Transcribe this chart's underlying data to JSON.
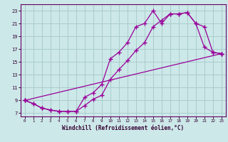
{
  "title": "",
  "xlabel": "Windchill (Refroidissement éolien,°C)",
  "bg_color": "#cce8e8",
  "grid_color": "#aacccc",
  "line_color": "#990099",
  "spine_color": "#660066",
  "tick_color": "#330033",
  "xlim": [
    -0.5,
    23.5
  ],
  "ylim": [
    6.5,
    24
  ],
  "xticks": [
    0,
    1,
    2,
    3,
    4,
    5,
    6,
    7,
    8,
    9,
    10,
    11,
    12,
    13,
    14,
    15,
    16,
    17,
    18,
    19,
    20,
    21,
    22,
    23
  ],
  "yticks": [
    7,
    9,
    11,
    13,
    15,
    17,
    19,
    21,
    23
  ],
  "line1_x": [
    0,
    1,
    2,
    3,
    4,
    5,
    6,
    7,
    8,
    9,
    10,
    11,
    12,
    13,
    14,
    15,
    16,
    17,
    18,
    19,
    20,
    21,
    22,
    23
  ],
  "line1_y": [
    9,
    8.5,
    7.8,
    7.5,
    7.3,
    7.3,
    7.3,
    9.5,
    10.2,
    11.5,
    15.5,
    16.5,
    18.0,
    20.5,
    21.0,
    23.0,
    21.0,
    22.5,
    22.5,
    22.7,
    21.0,
    17.3,
    16.5,
    16.3
  ],
  "line2_x": [
    0,
    1,
    2,
    3,
    4,
    5,
    6,
    7,
    8,
    9,
    10,
    11,
    12,
    13,
    14,
    15,
    16,
    17,
    18,
    19,
    20,
    21,
    22,
    23
  ],
  "line2_y": [
    9,
    8.5,
    7.8,
    7.5,
    7.3,
    7.3,
    7.3,
    8.2,
    9.2,
    9.8,
    12.3,
    13.8,
    15.2,
    16.8,
    18.0,
    20.5,
    21.5,
    22.5,
    22.5,
    22.7,
    21.0,
    20.5,
    16.5,
    16.3
  ],
  "line3_x": [
    0,
    23
  ],
  "line3_y": [
    9,
    16.3
  ]
}
